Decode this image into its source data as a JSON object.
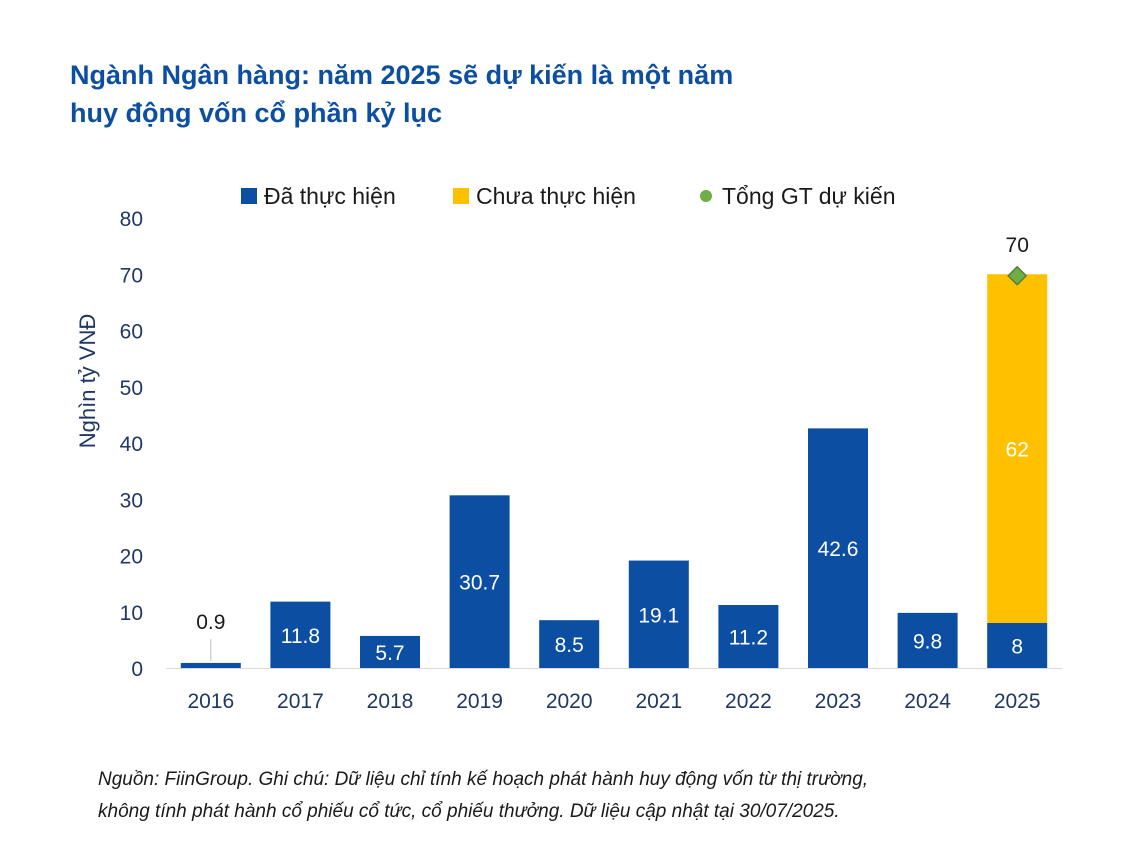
{
  "title_lines": [
    "Ngành Ngân hàng: năm 2025 sẽ dự kiến là một năm",
    "huy động vốn cổ phần kỷ lục"
  ],
  "note_lines": [
    "Nguồn: FiinGroup. Ghi chú: Dữ liệu chỉ tính kế hoạch phát hành huy động vốn từ thị trường,",
    "không tính phát hành cổ phiếu cổ tức, cổ phiếu thưởng. Dữ liệu cập nhật tại 30/07/2025."
  ],
  "colors": {
    "title": "#0b4ea2",
    "done": "#0b4ea2",
    "pending": "#ffc000",
    "total_marker": "#70ad47",
    "axis_text": "#1f3864"
  },
  "chart_data": {
    "type": "bar",
    "stacked": true,
    "categories": [
      "2016",
      "2017",
      "2018",
      "2019",
      "2020",
      "2021",
      "2022",
      "2023",
      "2024",
      "2025"
    ],
    "series": [
      {
        "name": "Đã thực hiện",
        "values": [
          0.9,
          11.8,
          5.7,
          30.7,
          8.5,
          19.1,
          11.2,
          42.6,
          9.8,
          8
        ],
        "labels": [
          "0.9",
          "11.8",
          "5.7",
          "30.7",
          "8.5",
          "19.1",
          "11.2",
          "42.6",
          "9.8",
          "8"
        ]
      },
      {
        "name": "Chưa thực hiện",
        "values": [
          null,
          null,
          null,
          null,
          null,
          null,
          null,
          null,
          null,
          62
        ],
        "labels": [
          null,
          null,
          null,
          null,
          null,
          null,
          null,
          null,
          null,
          "62"
        ]
      },
      {
        "name": "Tổng GT dự kiến",
        "type": "marker",
        "values": [
          null,
          null,
          null,
          null,
          null,
          null,
          null,
          null,
          null,
          70
        ],
        "labels": [
          null,
          null,
          null,
          null,
          null,
          null,
          null,
          null,
          null,
          "70"
        ]
      }
    ],
    "ylabel": "Nghìn tỷ VNĐ",
    "ylim": [
      0,
      80
    ],
    "yticks": [
      0,
      10,
      20,
      30,
      40,
      50,
      60,
      70,
      80
    ],
    "grid": false,
    "legend": "top"
  }
}
